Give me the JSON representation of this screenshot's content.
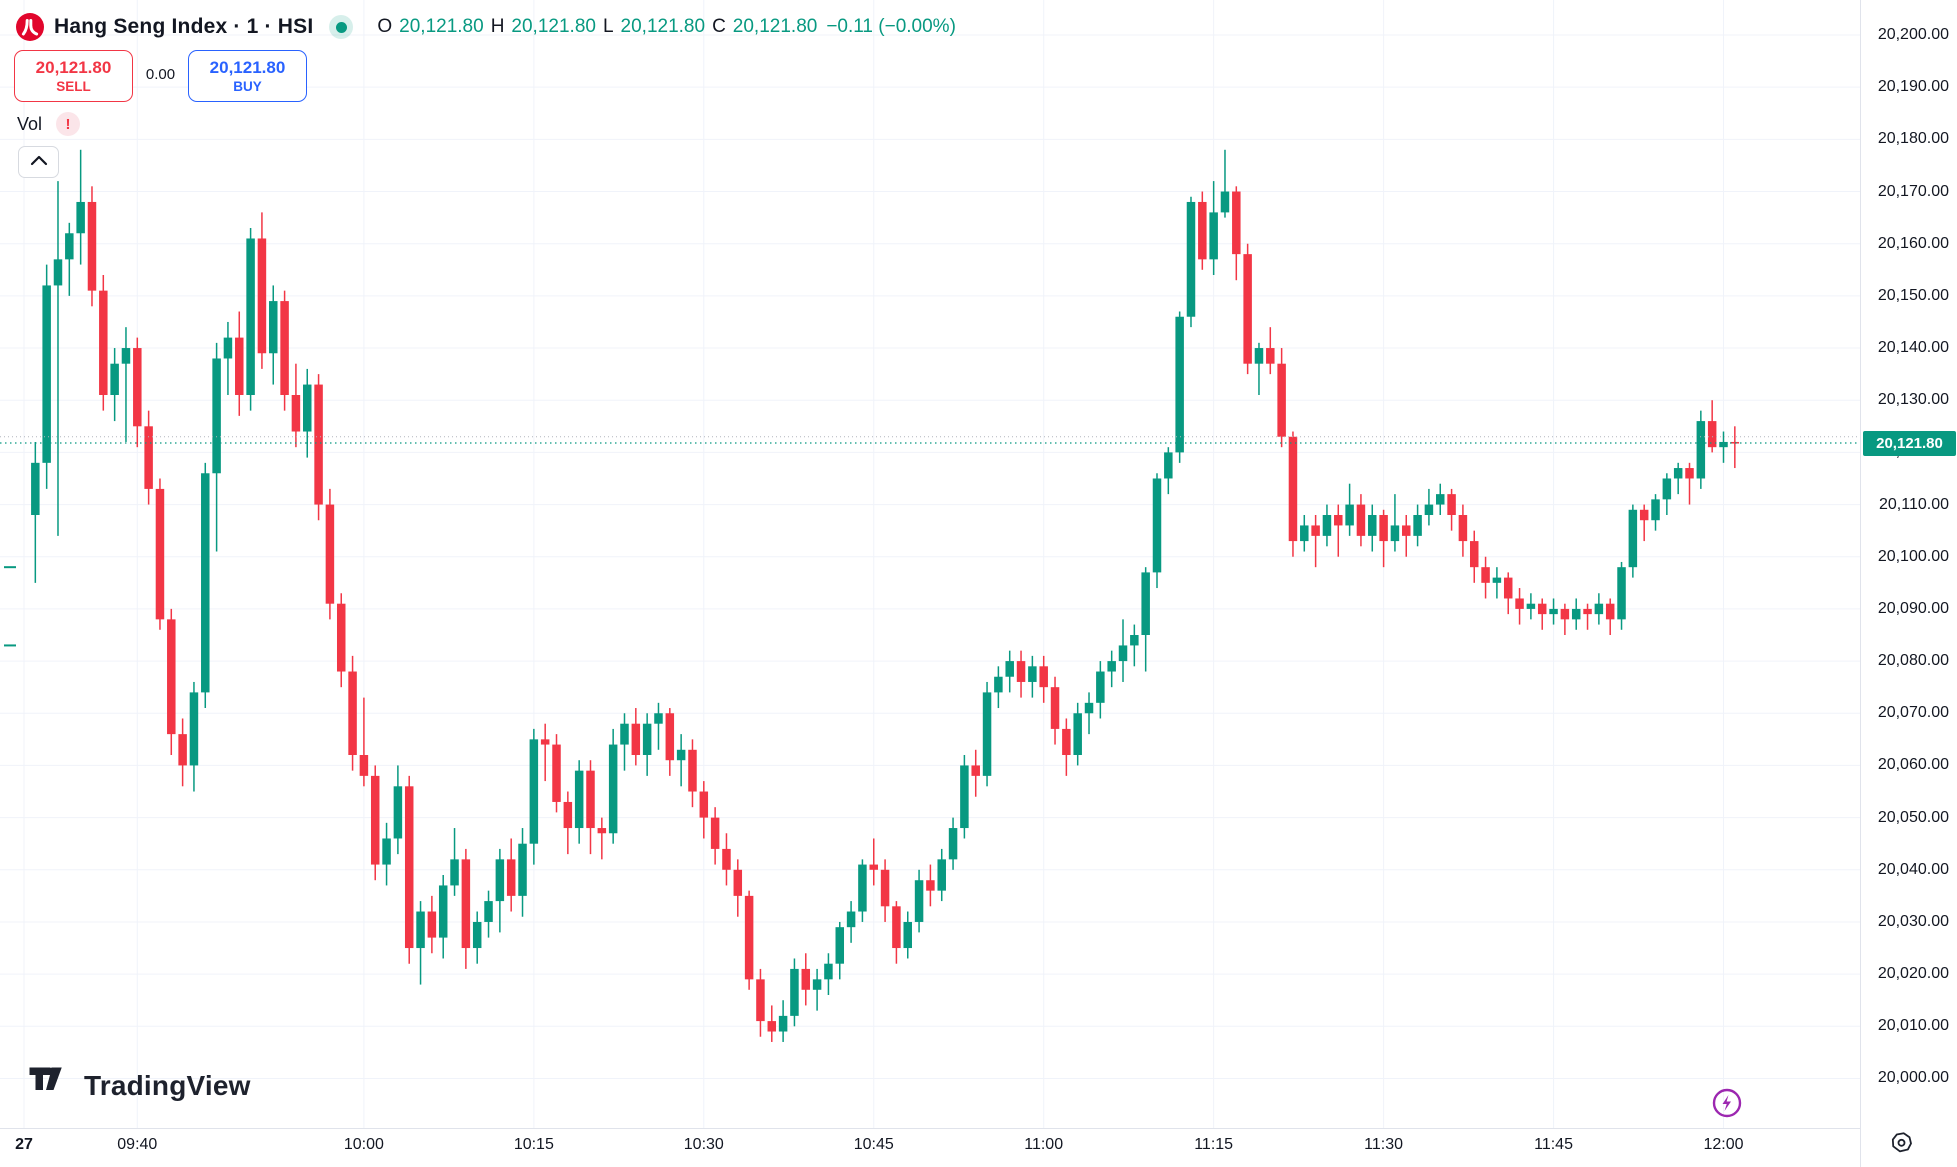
{
  "header": {
    "symbol_title": "Hang Seng Index · 1 · HSI",
    "market_status": "open",
    "ohlc": {
      "o_label": "O",
      "open": "20,121.80",
      "h_label": "H",
      "high": "20,121.80",
      "l_label": "L",
      "low": "20,121.80",
      "c_label": "C",
      "close": "20,121.80",
      "change": "−0.11 (−0.00%)"
    }
  },
  "trading_panel": {
    "sell_price": "20,121.80",
    "sell_label": "SELL",
    "spread": "0.00",
    "buy_price": "20,121.80",
    "buy_label": "BUY"
  },
  "indicator_legend": {
    "vol_label": "Vol",
    "warning_glyph": "!"
  },
  "watermark": {
    "brand": "TradingView"
  },
  "price_axis": {
    "labels": [
      "20,200.00",
      "20,190.00",
      "20,180.00",
      "20,170.00",
      "20,160.00",
      "20,150.00",
      "20,140.00",
      "20,130.00",
      "20,120.00",
      "20,110.00",
      "20,100.00",
      "20,090.00",
      "20,080.00",
      "20,070.00",
      "20,060.00",
      "20,050.00",
      "20,040.00",
      "20,030.00",
      "20,020.00",
      "20,010.00",
      "20,000.00"
    ],
    "top_price": 20200,
    "step": 10,
    "current_price_label": "20,121.80"
  },
  "time_axis": {
    "ticks": [
      {
        "label": "27",
        "minute": 0,
        "bold": true
      },
      {
        "label": "09:40",
        "minute": 10
      },
      {
        "label": "10:00",
        "minute": 30
      },
      {
        "label": "10:15",
        "minute": 45
      },
      {
        "label": "10:30",
        "minute": 60
      },
      {
        "label": "10:45",
        "minute": 75
      },
      {
        "label": "11:00",
        "minute": 90
      },
      {
        "label": "11:15",
        "minute": 105
      },
      {
        "label": "11:30",
        "minute": 120
      },
      {
        "label": "11:45",
        "minute": 135
      },
      {
        "label": "12:00",
        "minute": 150
      }
    ]
  },
  "colors": {
    "up": "#089981",
    "down": "#F23645",
    "sell": "#F23645",
    "buy": "#2962FF",
    "grid": "#f0f3fa",
    "axis_border": "#e0e3eb",
    "axis_text": "#131722",
    "price_line": "#089981",
    "reference_line": "#b2b5be",
    "badge_bg": "#089981",
    "lightning": "#9c27b0",
    "logo_red": "#e1062c"
  },
  "chart_data": {
    "type": "candlestick",
    "symbol": "HSI",
    "title": "Hang Seng Index, 1 minute",
    "interval_minutes": 1,
    "start_time": "09:31",
    "session_date_label": "27",
    "current_price": 20121.8,
    "visible_price_range": [
      19990,
      20206
    ],
    "grid": true,
    "dashed_reference_price": 20123,
    "left_edge_tick_prices": [
      20098,
      20083
    ],
    "candles_format": [
      "open",
      "high",
      "low",
      "close"
    ],
    "candles": [
      [
        20108,
        20122,
        20095,
        20118
      ],
      [
        20118,
        20156,
        20113,
        20152
      ],
      [
        20152,
        20172,
        20104,
        20157
      ],
      [
        20157,
        20164,
        20150,
        20162
      ],
      [
        20162,
        20178,
        20156,
        20168
      ],
      [
        20168,
        20171,
        20148,
        20151
      ],
      [
        20151,
        20154,
        20128,
        20131
      ],
      [
        20131,
        20140,
        20126,
        20137
      ],
      [
        20137,
        20144,
        20122,
        20140
      ],
      [
        20140,
        20142,
        20121,
        20125
      ],
      [
        20125,
        20128,
        20110,
        20113
      ],
      [
        20113,
        20115,
        20086,
        20088
      ],
      [
        20088,
        20090,
        20062,
        20066
      ],
      [
        20066,
        20069,
        20056,
        20060
      ],
      [
        20060,
        20076,
        20055,
        20074
      ],
      [
        20074,
        20118,
        20071,
        20116
      ],
      [
        20116,
        20141,
        20101,
        20138
      ],
      [
        20138,
        20145,
        20131,
        20142
      ],
      [
        20142,
        20147,
        20127,
        20131
      ],
      [
        20131,
        20163,
        20128,
        20161
      ],
      [
        20161,
        20166,
        20136,
        20139
      ],
      [
        20139,
        20152,
        20133,
        20149
      ],
      [
        20149,
        20151,
        20128,
        20131
      ],
      [
        20131,
        20137,
        20121,
        20124
      ],
      [
        20124,
        20136,
        20119,
        20133
      ],
      [
        20133,
        20135,
        20107,
        20110
      ],
      [
        20110,
        20113,
        20088,
        20091
      ],
      [
        20091,
        20093,
        20075,
        20078
      ],
      [
        20078,
        20081,
        20059,
        20062
      ],
      [
        20062,
        20073,
        20056,
        20058
      ],
      [
        20058,
        20060,
        20038,
        20041
      ],
      [
        20041,
        20049,
        20037,
        20046
      ],
      [
        20046,
        20060,
        20043,
        20056
      ],
      [
        20056,
        20058,
        20022,
        20025
      ],
      [
        20025,
        20034,
        20018,
        20032
      ],
      [
        20032,
        20035,
        20024,
        20027
      ],
      [
        20027,
        20039,
        20023,
        20037
      ],
      [
        20037,
        20048,
        20035,
        20042
      ],
      [
        20042,
        20044,
        20021,
        20025
      ],
      [
        20025,
        20032,
        20022,
        20030
      ],
      [
        20030,
        20036,
        20027,
        20034
      ],
      [
        20034,
        20044,
        20028,
        20042
      ],
      [
        20042,
        20046,
        20032,
        20035
      ],
      [
        20035,
        20048,
        20031,
        20045
      ],
      [
        20045,
        20067,
        20041,
        20065
      ],
      [
        20065,
        20068,
        20057,
        20064
      ],
      [
        20064,
        20066,
        20051,
        20053
      ],
      [
        20053,
        20055,
        20043,
        20048
      ],
      [
        20048,
        20061,
        20045,
        20059
      ],
      [
        20059,
        20061,
        20043,
        20048
      ],
      [
        20048,
        20050,
        20042,
        20047
      ],
      [
        20047,
        20067,
        20045,
        20064
      ],
      [
        20064,
        20070,
        20059,
        20068
      ],
      [
        20068,
        20071,
        20060,
        20062
      ],
      [
        20062,
        20070,
        20058,
        20068
      ],
      [
        20068,
        20072,
        20063,
        20070
      ],
      [
        20070,
        20071,
        20058,
        20061
      ],
      [
        20061,
        20066,
        20056,
        20063
      ],
      [
        20063,
        20065,
        20052,
        20055
      ],
      [
        20055,
        20057,
        20046,
        20050
      ],
      [
        20050,
        20052,
        20041,
        20044
      ],
      [
        20044,
        20047,
        20037,
        20040
      ],
      [
        20040,
        20042,
        20031,
        20035
      ],
      [
        20035,
        20036,
        20017,
        20019
      ],
      [
        20019,
        20021,
        20008,
        20011
      ],
      [
        20011,
        20014,
        20007,
        20009
      ],
      [
        20009,
        20015,
        20007,
        20012
      ],
      [
        20012,
        20023,
        20010,
        20021
      ],
      [
        20021,
        20024,
        20014,
        20017
      ],
      [
        20017,
        20021,
        20013,
        20019
      ],
      [
        20019,
        20024,
        20016,
        20022
      ],
      [
        20022,
        20030,
        20019,
        20029
      ],
      [
        20029,
        20034,
        20026,
        20032
      ],
      [
        20032,
        20042,
        20030,
        20041
      ],
      [
        20041,
        20046,
        20037,
        20040
      ],
      [
        20040,
        20042,
        20030,
        20033
      ],
      [
        20033,
        20034,
        20022,
        20025
      ],
      [
        20025,
        20032,
        20023,
        20030
      ],
      [
        20030,
        20040,
        20028,
        20038
      ],
      [
        20038,
        20041,
        20033,
        20036
      ],
      [
        20036,
        20044,
        20034,
        20042
      ],
      [
        20042,
        20050,
        20040,
        20048
      ],
      [
        20048,
        20062,
        20046,
        20060
      ],
      [
        20060,
        20063,
        20054,
        20058
      ],
      [
        20058,
        20076,
        20056,
        20074
      ],
      [
        20074,
        20079,
        20071,
        20077
      ],
      [
        20077,
        20082,
        20074,
        20080
      ],
      [
        20080,
        20082,
        20073,
        20076
      ],
      [
        20076,
        20081,
        20073,
        20079
      ],
      [
        20079,
        20081,
        20072,
        20075
      ],
      [
        20075,
        20077,
        20064,
        20067
      ],
      [
        20067,
        20069,
        20058,
        20062
      ],
      [
        20062,
        20072,
        20060,
        20070
      ],
      [
        20070,
        20074,
        20066,
        20072
      ],
      [
        20072,
        20080,
        20069,
        20078
      ],
      [
        20078,
        20082,
        20075,
        20080
      ],
      [
        20080,
        20088,
        20076,
        20083
      ],
      [
        20083,
        20087,
        20079,
        20085
      ],
      [
        20085,
        20098,
        20078,
        20097
      ],
      [
        20097,
        20116,
        20094,
        20115
      ],
      [
        20115,
        20121,
        20112,
        20120
      ],
      [
        20120,
        20147,
        20118,
        20146
      ],
      [
        20146,
        20169,
        20144,
        20168
      ],
      [
        20168,
        20170,
        20155,
        20157
      ],
      [
        20157,
        20172,
        20154,
        20166
      ],
      [
        20166,
        20178,
        20165,
        20170
      ],
      [
        20170,
        20171,
        20153,
        20158
      ],
      [
        20158,
        20160,
        20135,
        20137
      ],
      [
        20137,
        20141,
        20131,
        20140
      ],
      [
        20140,
        20144,
        20135,
        20137
      ],
      [
        20137,
        20140,
        20121,
        20123
      ],
      [
        20123,
        20124,
        20100,
        20103
      ],
      [
        20103,
        20108,
        20101,
        20106
      ],
      [
        20106,
        20108,
        20098,
        20104
      ],
      [
        20104,
        20110,
        20102,
        20108
      ],
      [
        20108,
        20110,
        20100,
        20106
      ],
      [
        20106,
        20114,
        20104,
        20110
      ],
      [
        20110,
        20112,
        20102,
        20104
      ],
      [
        20104,
        20110,
        20101,
        20108
      ],
      [
        20108,
        20109,
        20098,
        20103
      ],
      [
        20103,
        20112,
        20101,
        20106
      ],
      [
        20106,
        20108,
        20100,
        20104
      ],
      [
        20104,
        20110,
        20102,
        20108
      ],
      [
        20108,
        20113,
        20106,
        20110
      ],
      [
        20110,
        20114,
        20108,
        20112
      ],
      [
        20112,
        20113,
        20105,
        20108
      ],
      [
        20108,
        20110,
        20100,
        20103
      ],
      [
        20103,
        20105,
        20095,
        20098
      ],
      [
        20098,
        20100,
        20092,
        20095
      ],
      [
        20095,
        20098,
        20092,
        20096
      ],
      [
        20096,
        20097,
        20089,
        20092
      ],
      [
        20092,
        20094,
        20087,
        20090
      ],
      [
        20090,
        20093,
        20088,
        20091
      ],
      [
        20091,
        20092,
        20086,
        20089
      ],
      [
        20089,
        20092,
        20087,
        20090
      ],
      [
        20090,
        20091,
        20085,
        20088
      ],
      [
        20088,
        20092,
        20086,
        20090
      ],
      [
        20090,
        20091,
        20086,
        20089
      ],
      [
        20089,
        20093,
        20087,
        20091
      ],
      [
        20091,
        20092,
        20085,
        20088
      ],
      [
        20088,
        20099,
        20086,
        20098
      ],
      [
        20098,
        20110,
        20096,
        20109
      ],
      [
        20109,
        20110,
        20103,
        20107
      ],
      [
        20107,
        20112,
        20105,
        20111
      ],
      [
        20111,
        20116,
        20108,
        20115
      ],
      [
        20115,
        20118,
        20112,
        20117
      ],
      [
        20117,
        20118,
        20110,
        20115
      ],
      [
        20115,
        20128,
        20113,
        20126
      ],
      [
        20126,
        20130,
        20120,
        20121
      ],
      [
        20121,
        20124,
        20118,
        20122
      ],
      [
        20122,
        20125,
        20117,
        20121.8
      ]
    ]
  }
}
